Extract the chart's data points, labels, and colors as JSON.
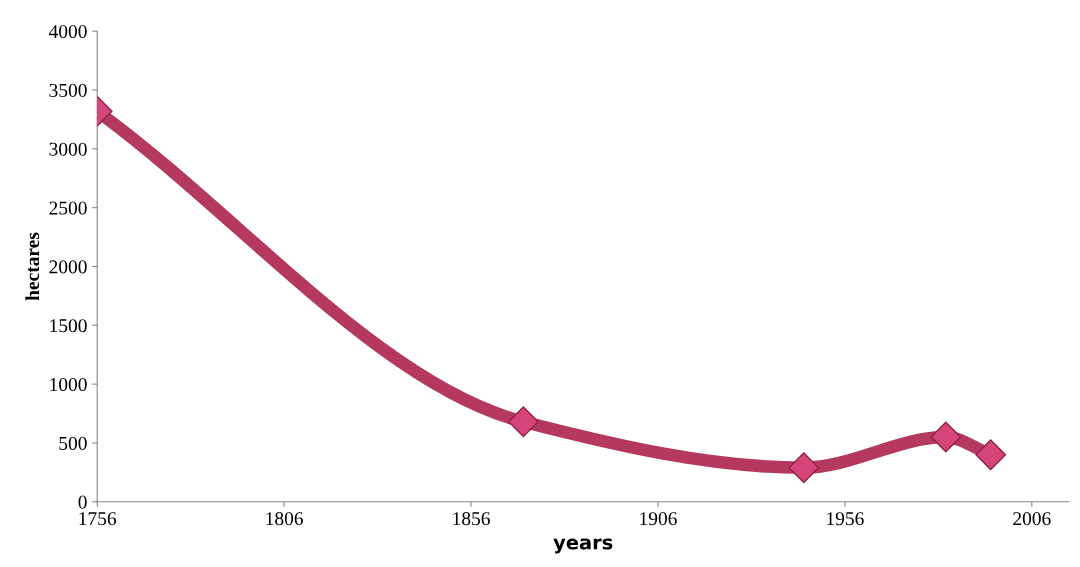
{
  "chart_data": {
    "type": "line",
    "xlabel": "years",
    "ylabel": "hectares",
    "x": [
      1756,
      1870,
      1945,
      1983,
      1995
    ],
    "series": [
      {
        "color": "#b5395f",
        "values": [
          3320,
          680,
          290,
          550,
          400
        ]
      }
    ],
    "marker": "diamond",
    "line_style": "solid",
    "grid": false,
    "legend": false,
    "xlim": [
      1756,
      2016
    ],
    "xticks": [
      1756,
      1806,
      1856,
      1906,
      1956,
      2006
    ],
    "ylim": [
      0,
      4000
    ],
    "yticks": [
      0,
      500,
      1000,
      1500,
      2000,
      2500,
      3000,
      3500,
      4000
    ]
  }
}
